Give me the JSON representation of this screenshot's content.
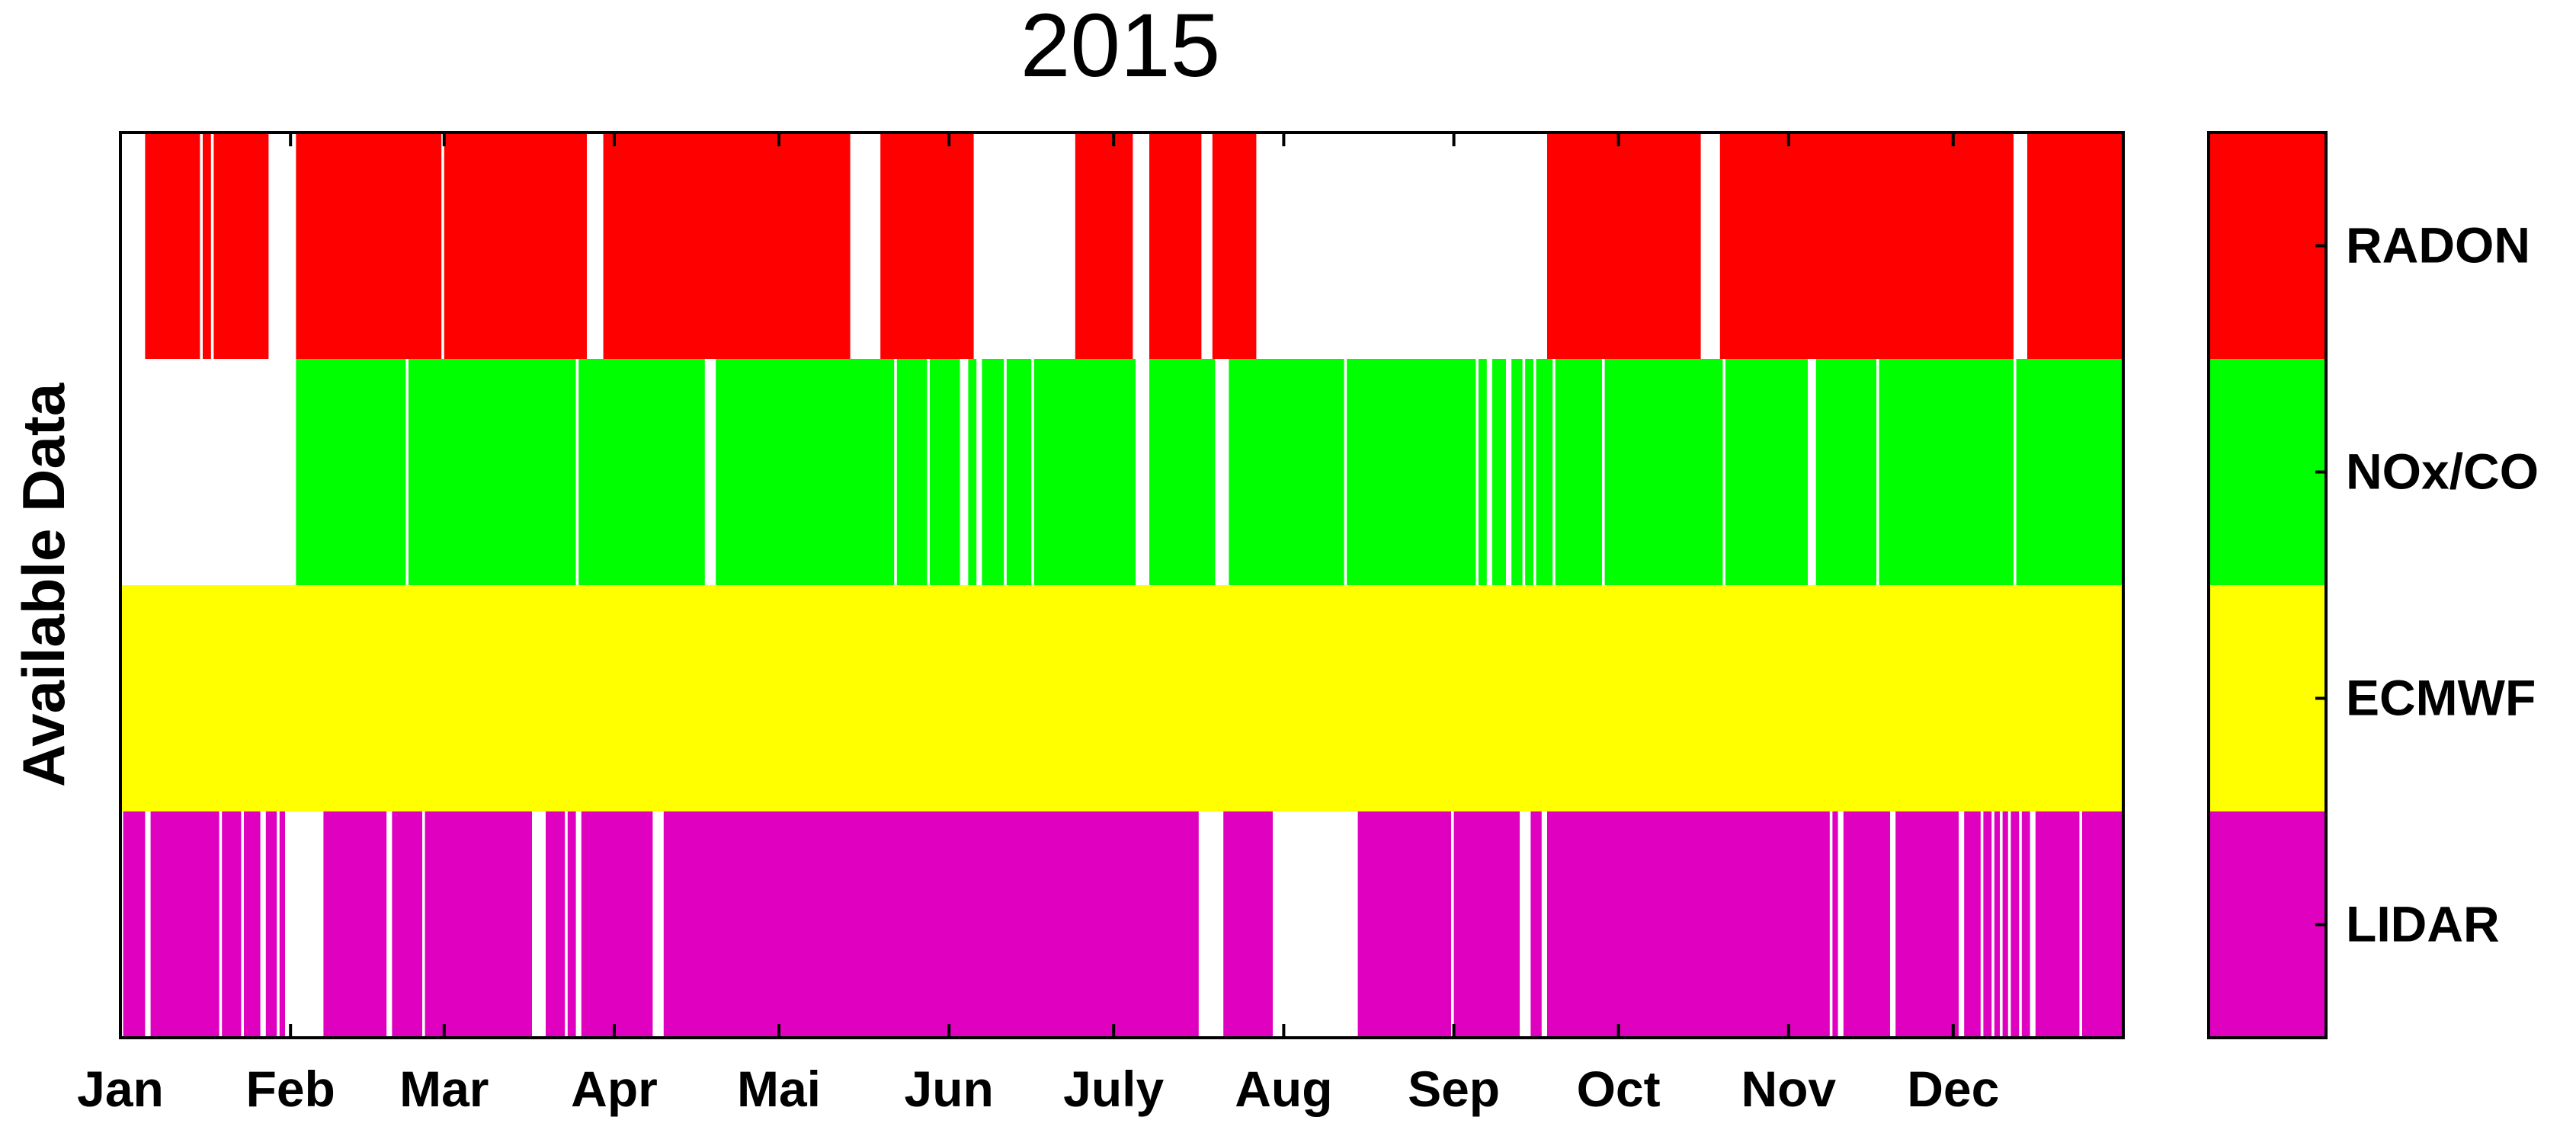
{
  "chart_data": {
    "type": "heatmap",
    "title": "2015",
    "ylabel": "Available Data",
    "xlabel": "",
    "x_range_days": [
      1,
      366
    ],
    "months": [
      "Jan",
      "Feb",
      "Mar",
      "Apr",
      "Mai",
      "Jun",
      "July",
      "Aug",
      "Sep",
      "Oct",
      "Nov",
      "Dec"
    ],
    "month_start_days": [
      1,
      32,
      60,
      91,
      121,
      152,
      182,
      213,
      244,
      274,
      305,
      335
    ],
    "series": [
      {
        "name": "RADON",
        "color": "#ff0000",
        "gaps_days": [
          [
            1,
            5.5
          ],
          [
            15.5,
            16
          ],
          [
            17.5,
            18
          ],
          [
            28,
            33
          ],
          [
            59.5,
            60
          ],
          [
            86,
            89
          ],
          [
            134,
            139.5
          ],
          [
            156.5,
            175
          ],
          [
            185.5,
            188.5
          ],
          [
            198,
            200
          ],
          [
            208,
            261
          ],
          [
            289,
            292.5
          ],
          [
            346,
            348.5
          ]
        ]
      },
      {
        "name": "NOx/CO",
        "color": "#00ff00",
        "gaps_days": [
          [
            1,
            33
          ],
          [
            53,
            53.5
          ],
          [
            84,
            84.5
          ],
          [
            107.5,
            109.5
          ],
          [
            142,
            142.5
          ],
          [
            148,
            148.5
          ],
          [
            154,
            155.5
          ],
          [
            157,
            158
          ],
          [
            162,
            162.5
          ],
          [
            167,
            167.5
          ],
          [
            186,
            188.5
          ],
          [
            200.5,
            203
          ],
          [
            224,
            224.5
          ],
          [
            248,
            248.5
          ],
          [
            250,
            251
          ],
          [
            253.5,
            254.5
          ],
          [
            256.5,
            257
          ],
          [
            258.5,
            259
          ],
          [
            262,
            262.5
          ],
          [
            271,
            271.5
          ],
          [
            293,
            293.5
          ],
          [
            308.5,
            310
          ],
          [
            321,
            321.5
          ],
          [
            346,
            346.5
          ]
        ]
      },
      {
        "name": "ECMWF",
        "color": "#ffff00",
        "gaps_days": []
      },
      {
        "name": "LIDAR",
        "color": "#e000c0",
        "gaps_days": [
          [
            1,
            1.5
          ],
          [
            5.5,
            6.5
          ],
          [
            19,
            19.5
          ],
          [
            23,
            23.5
          ],
          [
            26.5,
            27.5
          ],
          [
            29.5,
            30
          ],
          [
            31,
            38
          ],
          [
            49.5,
            50.5
          ],
          [
            56,
            56.5
          ],
          [
            76,
            78.5
          ],
          [
            82,
            82.5
          ],
          [
            84,
            85
          ],
          [
            98,
            100
          ],
          [
            197.5,
            202
          ],
          [
            211,
            226.5
          ],
          [
            243.5,
            244
          ],
          [
            256,
            258
          ],
          [
            260,
            261
          ],
          [
            312.5,
            313
          ],
          [
            314,
            315
          ],
          [
            323.5,
            324.5
          ],
          [
            336,
            337
          ],
          [
            340,
            340.5
          ],
          [
            342,
            342.5
          ],
          [
            343.5,
            344
          ],
          [
            345,
            345.5
          ],
          [
            347,
            347.5
          ],
          [
            349,
            350
          ],
          [
            358,
            358.5
          ]
        ]
      }
    ],
    "legend": {
      "position": "right",
      "type": "colorbar",
      "labels": [
        "RADON",
        "NOx/CO",
        "ECMWF",
        "LIDAR"
      ]
    },
    "grid": false
  }
}
